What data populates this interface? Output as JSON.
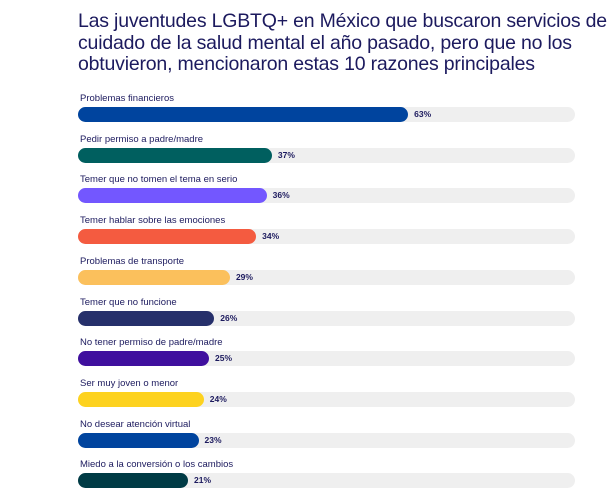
{
  "chart_data": {
    "type": "bar",
    "orientation": "horizontal",
    "title": "Las juventudes LGBTQ+ en México que buscaron servicios de cuidado de la salud mental el año pasado, pero que no los obtuvieron, mencionaron estas 10 razones principales",
    "categories": [
      "Problemas financieros",
      "Pedir permiso a padre/madre",
      "Temer que no tomen el tema en serio",
      "Temer hablar sobre las emociones",
      "Problemas de transporte",
      "Temer que no funcione",
      "No tener permiso de padre/madre",
      "Ser muy joven o menor",
      "No desear atención virtual",
      "Miedo a la conversión o los cambios"
    ],
    "values": [
      63,
      37,
      36,
      34,
      29,
      26,
      25,
      24,
      23,
      21
    ],
    "value_labels": [
      "63%",
      "37%",
      "36%",
      "34%",
      "29%",
      "26%",
      "25%",
      "24%",
      "23%",
      "21%"
    ],
    "colors": [
      "#00449e",
      "#005f5f",
      "#7357ff",
      "#f45b40",
      "#fbc05c",
      "#26306b",
      "#3f0f9e",
      "#fdd21f",
      "#00449e",
      "#003b45"
    ],
    "track_color": "#efefef",
    "unit": "%",
    "grid": false
  }
}
